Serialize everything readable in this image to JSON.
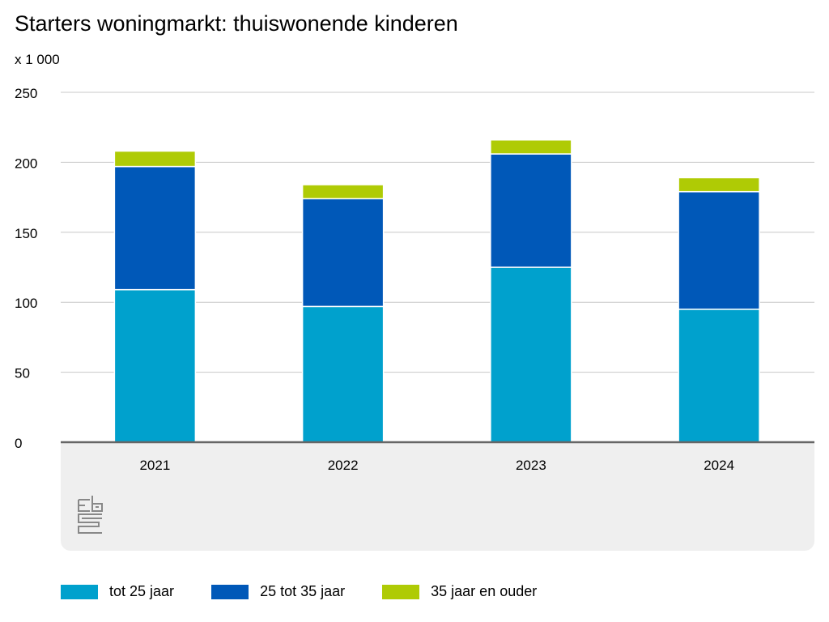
{
  "chart_data": {
    "type": "bar",
    "stacked": true,
    "title": "Starters woningmarkt: thuiswonende kinderen",
    "ylabel": "x 1 000",
    "xlabel": "",
    "categories": [
      "2021",
      "2022",
      "2023",
      "2024"
    ],
    "series": [
      {
        "name": "tot 25 jaar",
        "color": "#00a1cd",
        "values": [
          109,
          97,
          125,
          95
        ]
      },
      {
        "name": "25 tot 35 jaar",
        "color": "#0058b8",
        "values": [
          88,
          77,
          81,
          84
        ]
      },
      {
        "name": "35 jaar en ouder",
        "color": "#afcb05",
        "values": [
          11,
          10,
          10,
          10
        ]
      }
    ],
    "ylim": [
      0,
      250
    ],
    "yticks": [
      0,
      50,
      100,
      150,
      200,
      250
    ],
    "grid": true,
    "legend": "bottom",
    "logo": "cbs"
  }
}
